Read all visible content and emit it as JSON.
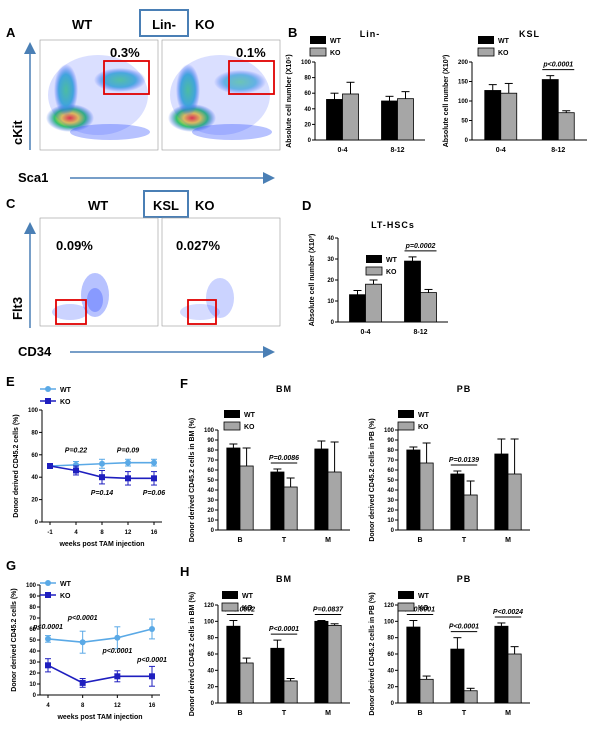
{
  "panel_labels": {
    "A": "A",
    "B": "B",
    "C": "C",
    "D": "D",
    "E": "E",
    "F": "F",
    "G": "G",
    "H": "H"
  },
  "colors": {
    "wt": "#000000",
    "ko": "#a6a6a6",
    "wt_line": "#5aa9e6",
    "ko_line": "#1f1fbf",
    "arrow": "#4a7fb5",
    "gate": "#d62728",
    "box": "#4a7fb5"
  },
  "panel_a": {
    "wt": "WT",
    "ko": "KO",
    "gate_label": "Lin-",
    "pct_wt": "0.3%",
    "pct_ko": "0.1%",
    "y_axis": "cKit",
    "x_axis": "Sca1"
  },
  "panel_c": {
    "wt": "WT",
    "ko": "KO",
    "gate_label": "KSL",
    "pct_wt": "0.09%",
    "pct_ko": "0.027%",
    "y_axis": "Flt3",
    "x_axis": "CD34"
  },
  "legend": {
    "wt": "WT",
    "ko": "KO"
  },
  "chart_data": [
    {
      "id": "B1",
      "type": "bar",
      "title": "Lin-",
      "ylabel": "Absolute cell number (X10⁵)",
      "categories": [
        "0-4",
        "8-12"
      ],
      "series": [
        {
          "name": "WT",
          "values": [
            52,
            50
          ],
          "err": [
            8,
            6
          ]
        },
        {
          "name": "KO",
          "values": [
            59,
            53
          ],
          "err": [
            15,
            9
          ]
        }
      ],
      "ylim": [
        0,
        100
      ],
      "yticks": [
        0,
        20,
        40,
        60,
        80,
        100
      ],
      "annotations": []
    },
    {
      "id": "B2",
      "type": "bar",
      "title": "KSL",
      "ylabel": "Absolute cell number (X10³)",
      "categories": [
        "0-4",
        "8-12"
      ],
      "series": [
        {
          "name": "WT",
          "values": [
            127,
            155
          ],
          "err": [
            15,
            10
          ]
        },
        {
          "name": "KO",
          "values": [
            120,
            70
          ],
          "err": [
            25,
            5
          ]
        }
      ],
      "ylim": [
        0,
        200
      ],
      "yticks": [
        0,
        50,
        100,
        150,
        200
      ],
      "annotations": [
        {
          "cat": 1,
          "text": "p<0.0001"
        }
      ]
    },
    {
      "id": "D",
      "type": "bar",
      "title": "LT-HSCs",
      "ylabel": "Absolute cell number (X10³)",
      "categories": [
        "0-4",
        "8-12"
      ],
      "series": [
        {
          "name": "WT",
          "values": [
            13,
            29
          ],
          "err": [
            2,
            2
          ]
        },
        {
          "name": "KO",
          "values": [
            18,
            14
          ],
          "err": [
            2,
            1.5
          ]
        }
      ],
      "ylim": [
        0,
        40
      ],
      "yticks": [
        0,
        10,
        20,
        30,
        40
      ],
      "annotations": [
        {
          "cat": 1,
          "text": "p=0.0002"
        }
      ]
    },
    {
      "id": "E",
      "type": "line",
      "title": "",
      "ylabel": "Donor derived CD45.2 cells (%)",
      "xlabel": "weeks post TAM injection",
      "x": [
        -1,
        4,
        8,
        12,
        16
      ],
      "xticks": [
        "-1",
        "4",
        "8",
        "12",
        "16"
      ],
      "series": [
        {
          "name": "WT",
          "values": [
            50,
            51,
            52,
            53,
            53
          ],
          "err": [
            2,
            3,
            4,
            3,
            3
          ]
        },
        {
          "name": "KO",
          "values": [
            50,
            46,
            40,
            39,
            39
          ],
          "err": [
            2,
            4,
            6,
            6,
            6
          ]
        }
      ],
      "ylim": [
        0,
        100
      ],
      "yticks": [
        0,
        20,
        40,
        60,
        80,
        100
      ],
      "annotations": [
        {
          "text": "P=0.22",
          "x": 4,
          "y": 62
        },
        {
          "text": "P=0.09",
          "x": 12,
          "y": 62
        },
        {
          "text": "P=0.14",
          "x": 8,
          "y": 24
        },
        {
          "text": "P=0.06",
          "x": 16,
          "y": 24
        }
      ]
    },
    {
      "id": "F1",
      "type": "bar",
      "title": "BM",
      "ylabel": "Donor derived CD45.2 cells in BM (%)",
      "categories": [
        "B",
        "T",
        "M"
      ],
      "series": [
        {
          "name": "WT",
          "values": [
            82,
            58,
            81
          ],
          "err": [
            4,
            3,
            8
          ]
        },
        {
          "name": "KO",
          "values": [
            64,
            43,
            58
          ],
          "err": [
            18,
            9,
            30
          ]
        }
      ],
      "ylim": [
        0,
        100
      ],
      "yticks": [
        0,
        10,
        20,
        30,
        40,
        50,
        60,
        70,
        80,
        90,
        100
      ],
      "annotations": [
        {
          "cat": 1,
          "text": "P=0.0086"
        }
      ]
    },
    {
      "id": "F2",
      "type": "bar",
      "title": "PB",
      "ylabel": "Donor derived CD45.2 cells in PB (%)",
      "categories": [
        "B",
        "T",
        "M"
      ],
      "series": [
        {
          "name": "WT",
          "values": [
            80,
            56,
            76
          ],
          "err": [
            3,
            3,
            15
          ]
        },
        {
          "name": "KO",
          "values": [
            67,
            35,
            56
          ],
          "err": [
            20,
            14,
            35
          ]
        }
      ],
      "ylim": [
        0,
        100
      ],
      "yticks": [
        0,
        10,
        20,
        30,
        40,
        50,
        60,
        70,
        80,
        90,
        100
      ],
      "annotations": [
        {
          "cat": 1,
          "text": "P=0.0139"
        }
      ]
    },
    {
      "id": "G",
      "type": "line",
      "title": "",
      "ylabel": "Donor derived CD45.2 cells (%)",
      "xlabel": "weeks post TAM injection",
      "x": [
        4,
        8,
        12,
        16
      ],
      "xticks": [
        "4",
        "8",
        "12",
        "16"
      ],
      "series": [
        {
          "name": "WT",
          "values": [
            51,
            48,
            52,
            60
          ],
          "err": [
            3,
            10,
            10,
            9
          ]
        },
        {
          "name": "KO",
          "values": [
            27,
            11,
            17,
            17
          ],
          "err": [
            6,
            4,
            5,
            9
          ]
        }
      ],
      "ylim": [
        0,
        100
      ],
      "yticks": [
        0,
        10,
        20,
        30,
        40,
        50,
        60,
        70,
        80,
        90,
        100
      ],
      "annotations": [
        {
          "text": "p<0.0001",
          "x": 4,
          "y": 60
        },
        {
          "text": "p<0.0001",
          "x": 8,
          "y": 68
        },
        {
          "text": "p<0.0001",
          "x": 12,
          "y": 38
        },
        {
          "text": "p<0.0001",
          "x": 16,
          "y": 30
        }
      ]
    },
    {
      "id": "H1",
      "type": "bar",
      "title": "BM",
      "ylabel": "Donor derived CD45.2 cells in BM (%)",
      "categories": [
        "B",
        "T",
        "M"
      ],
      "series": [
        {
          "name": "WT",
          "values": [
            94,
            67,
            100
          ],
          "err": [
            7,
            10,
            1
          ]
        },
        {
          "name": "KO",
          "values": [
            49,
            27,
            95
          ],
          "err": [
            6,
            3,
            2
          ]
        }
      ],
      "ylim": [
        0,
        120
      ],
      "yticks": [
        0,
        20,
        40,
        60,
        80,
        100,
        120
      ],
      "annotations": [
        {
          "cat": 0,
          "text": "P=0.0002"
        },
        {
          "cat": 1,
          "text": "P<0.0001"
        },
        {
          "cat": 2,
          "text": "P=0.0837"
        }
      ]
    },
    {
      "id": "H2",
      "type": "bar",
      "title": "PB",
      "ylabel": "Donor derived CD45.2 cells in PB (%)",
      "categories": [
        "B",
        "T",
        "M"
      ],
      "series": [
        {
          "name": "WT",
          "values": [
            93,
            66,
            94
          ],
          "err": [
            8,
            14,
            4
          ]
        },
        {
          "name": "KO",
          "values": [
            29,
            15,
            60
          ],
          "err": [
            4,
            3,
            9
          ]
        }
      ],
      "ylim": [
        0,
        120
      ],
      "yticks": [
        0,
        20,
        40,
        60,
        80,
        100,
        120
      ],
      "annotations": [
        {
          "cat": 0,
          "text": "P<0.0001"
        },
        {
          "cat": 1,
          "text": "P<0.0001"
        },
        {
          "cat": 2,
          "text": "P<0.0024"
        }
      ]
    }
  ]
}
